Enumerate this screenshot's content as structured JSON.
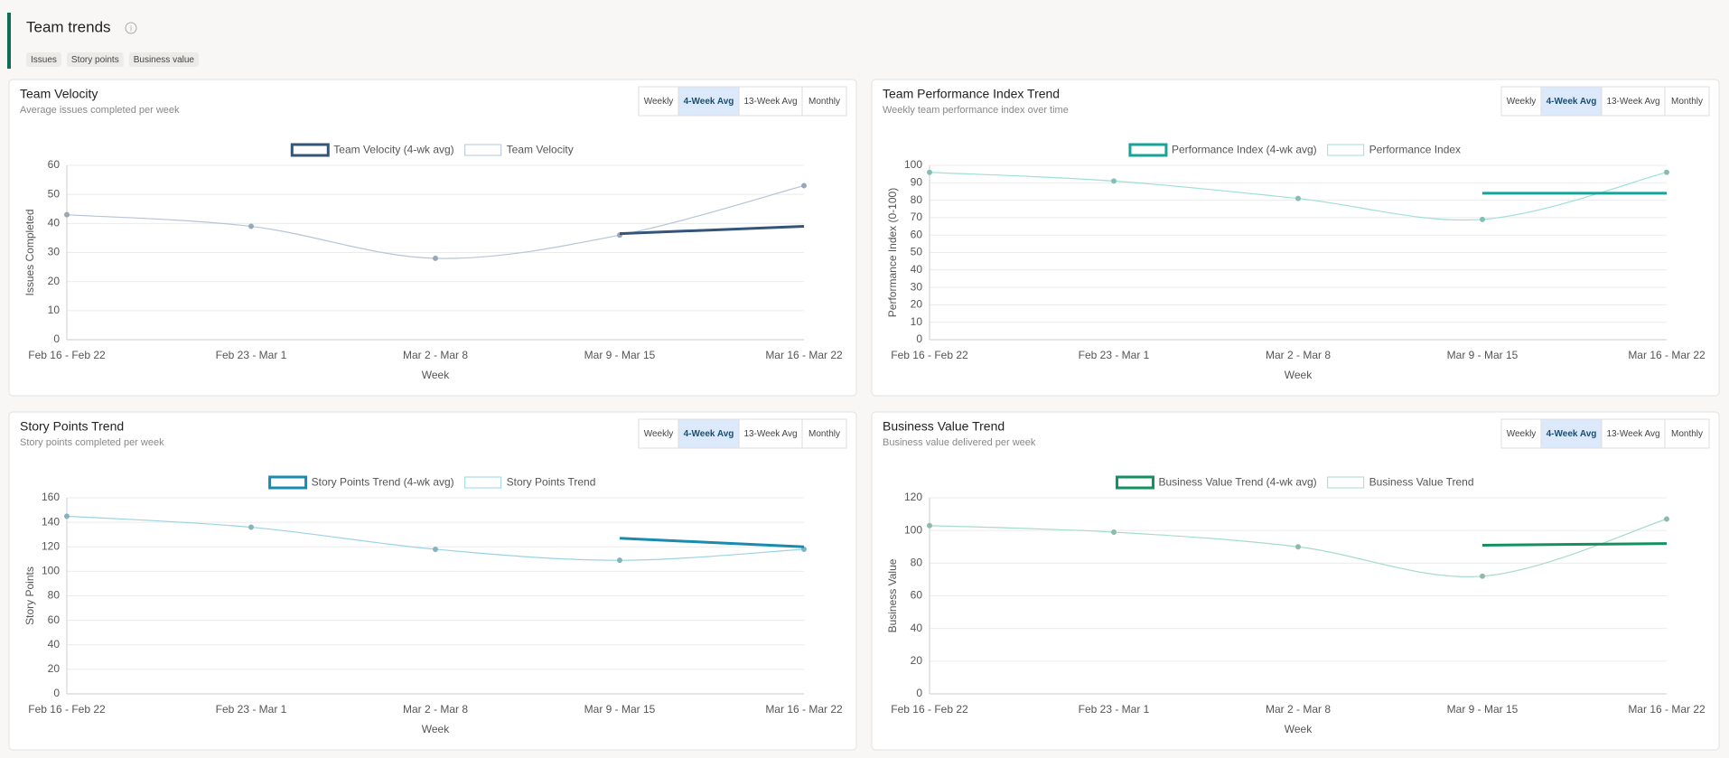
{
  "header": {
    "title": "Team trends",
    "tags": [
      "Issues",
      "Story points",
      "Business value"
    ]
  },
  "range_options": [
    "Weekly",
    "4-Week Avg",
    "13-Week Avg",
    "Monthly"
  ],
  "selected_range": 1,
  "chart_data": [
    {
      "type": "line",
      "title": "Team Velocity",
      "subtitle": "Average issues completed per week",
      "x_label": "Week",
      "y_label": "Issues Completed",
      "categories": [
        "Feb 16 - Feb 22",
        "Feb 23 - Mar 1",
        "Mar 2 - Mar 8",
        "Mar 9 - Mar 15",
        "Mar 16 - Mar 22"
      ],
      "series": [
        {
          "name": "Team Velocity (4-wk avg)",
          "color": "#34557a",
          "values": [
            null,
            null,
            null,
            36.5,
            39
          ]
        },
        {
          "name": "Team Velocity",
          "color": "#b5c4d8",
          "values": [
            43,
            39,
            28,
            36,
            53
          ]
        }
      ],
      "ylim": [
        0,
        60
      ],
      "yticks": [
        0,
        10,
        20,
        30,
        40,
        50,
        60
      ],
      "grid": true
    },
    {
      "type": "line",
      "title": "Team Performance Index Trend",
      "subtitle": "Weekly team performance index over time",
      "x_label": "Week",
      "y_label": "Performance Index (0-100)",
      "categories": [
        "Feb 16 - Feb 22",
        "Feb 23 - Mar 1",
        "Mar 2 - Mar 8",
        "Mar 9 - Mar 15",
        "Mar 16 - Mar 22"
      ],
      "series": [
        {
          "name": "Performance Index (4-wk avg)",
          "color": "#17a398",
          "values": [
            null,
            null,
            null,
            84,
            84
          ]
        },
        {
          "name": "Performance Index",
          "color": "#9edfd7",
          "values": [
            96,
            91,
            81,
            69,
            96
          ]
        }
      ],
      "ylim": [
        0,
        100
      ],
      "yticks": [
        0,
        10,
        20,
        30,
        40,
        50,
        60,
        70,
        80,
        90,
        100
      ],
      "grid": true
    },
    {
      "type": "line",
      "title": "Story Points Trend",
      "subtitle": "Story points completed per week",
      "x_label": "Week",
      "y_label": "Story Points",
      "categories": [
        "Feb 16 - Feb 22",
        "Feb 23 - Mar 1",
        "Mar 2 - Mar 8",
        "Mar 9 - Mar 15",
        "Mar 16 - Mar 22"
      ],
      "series": [
        {
          "name": "Story Points Trend (4-wk avg)",
          "color": "#1a8bb0",
          "values": [
            null,
            null,
            null,
            127,
            120
          ]
        },
        {
          "name": "Story Points Trend",
          "color": "#9bd3e3",
          "values": [
            145,
            136,
            118,
            109,
            118
          ]
        }
      ],
      "ylim": [
        0,
        160
      ],
      "yticks": [
        0,
        20,
        40,
        60,
        80,
        100,
        120,
        140,
        160
      ],
      "grid": true
    },
    {
      "type": "line",
      "title": "Business Value Trend",
      "subtitle": "Business value delivered per week",
      "x_label": "Week",
      "y_label": "Business Value",
      "categories": [
        "Feb 16 - Feb 22",
        "Feb 23 - Mar 1",
        "Mar 2 - Mar 8",
        "Mar 9 - Mar 15",
        "Mar 16 - Mar 22"
      ],
      "series": [
        {
          "name": "Business Value Trend (4-wk avg)",
          "color": "#13915f",
          "values": [
            null,
            null,
            null,
            91,
            92
          ]
        },
        {
          "name": "Business Value Trend",
          "color": "#a5dcc9",
          "values": [
            103,
            99,
            90,
            72,
            107
          ]
        }
      ],
      "ylim": [
        0,
        120
      ],
      "yticks": [
        0,
        20,
        40,
        60,
        80,
        100,
        120
      ],
      "grid": true
    }
  ]
}
